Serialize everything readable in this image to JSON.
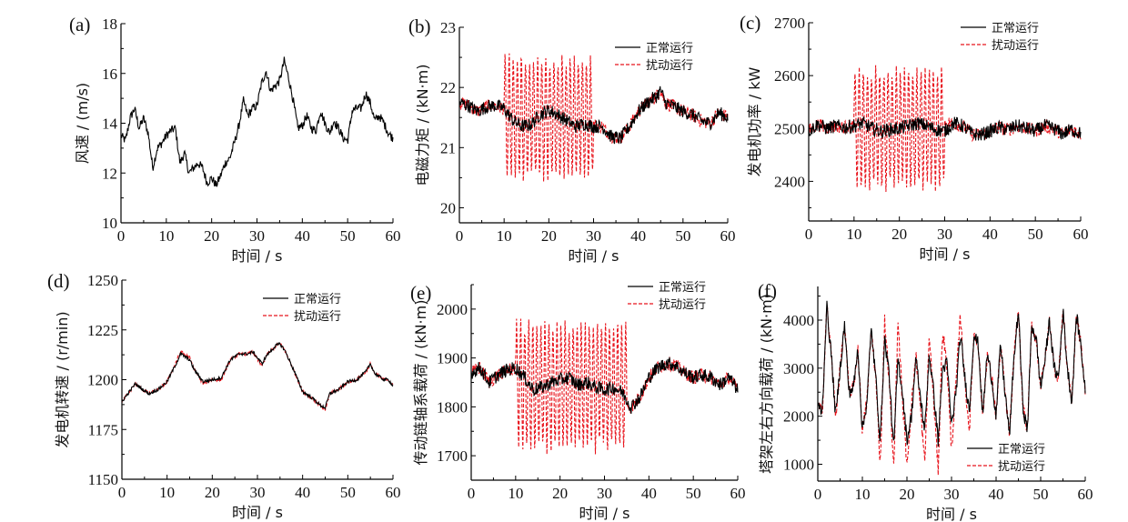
{
  "figure": {
    "legend": {
      "normal": "正常运行",
      "disturbed": "扰动运行"
    },
    "colors": {
      "normal": "#000000",
      "disturbed": "#e8141c"
    }
  },
  "chart_data": [
    {
      "id": "a",
      "type": "line",
      "panel_label": "(a)",
      "title": "",
      "xlabel": "时间 / s",
      "ylabel": "风速 / (m/s)",
      "xlim": [
        0,
        60
      ],
      "ylim": [
        10,
        18
      ],
      "xticks": [
        0,
        10,
        20,
        30,
        40,
        50,
        60
      ],
      "yticks": [
        10,
        12,
        14,
        16,
        18
      ],
      "legend": null,
      "series": [
        {
          "name": "风速",
          "style": "solid",
          "color": "#000000",
          "x": [
            0,
            1,
            2,
            3,
            4,
            5,
            6,
            7,
            8,
            9,
            10,
            11,
            12,
            13,
            14,
            15,
            16,
            17,
            18,
            19,
            20,
            21,
            22,
            23,
            24,
            25,
            26,
            27,
            28,
            29,
            30,
            31,
            32,
            33,
            34,
            35,
            36,
            37,
            38,
            39,
            40,
            41,
            42,
            43,
            44,
            45,
            46,
            47,
            48,
            49,
            50,
            51,
            52,
            53,
            54,
            55,
            56,
            57,
            58,
            59,
            60
          ],
          "y": [
            13.5,
            13.3,
            14.2,
            14.6,
            13.8,
            14.2,
            13.6,
            12.2,
            13.0,
            13.2,
            13.5,
            13.7,
            13.8,
            12.4,
            12.8,
            12.0,
            12.2,
            12.4,
            12.2,
            11.6,
            11.8,
            11.5,
            11.9,
            12.4,
            12.6,
            13.2,
            13.9,
            14.9,
            14.3,
            14.6,
            14.7,
            15.6,
            16.1,
            15.3,
            15.5,
            15.7,
            16.5,
            15.8,
            14.9,
            13.8,
            13.9,
            14.3,
            13.8,
            13.7,
            14.5,
            14.0,
            13.6,
            14.1,
            13.8,
            13.4,
            13.3,
            14.5,
            14.6,
            14.6,
            15.2,
            14.8,
            14.1,
            14.3,
            14.0,
            13.6,
            13.4
          ]
        }
      ]
    },
    {
      "id": "b",
      "type": "line",
      "panel_label": "(b)",
      "title": "",
      "xlabel": "时间 / s",
      "ylabel": "电磁力矩 / (kN·m)",
      "xlim": [
        0,
        60
      ],
      "ylim": [
        19.75,
        23
      ],
      "xticks": [
        0,
        10,
        20,
        30,
        40,
        50,
        60
      ],
      "yticks": [
        20,
        21,
        22,
        23
      ],
      "legend": "top-right",
      "disturbance_window_s": [
        10,
        30
      ],
      "disturbance_envelope": {
        "upper": 22.5,
        "lower": 20.5,
        "peak_max": 22.75,
        "peak_min": 20.2
      },
      "series": [
        {
          "name": "正常运行",
          "style": "solid",
          "color": "#000000",
          "x": [
            0,
            2,
            4,
            6,
            8,
            10,
            12,
            14,
            16,
            18,
            20,
            22,
            24,
            26,
            28,
            30,
            32,
            34,
            36,
            38,
            40,
            42,
            44,
            45,
            46,
            48,
            50,
            52,
            54,
            56,
            58,
            60
          ],
          "y": [
            21.75,
            21.7,
            21.6,
            21.68,
            21.7,
            21.65,
            21.45,
            21.35,
            21.38,
            21.55,
            21.62,
            21.55,
            21.45,
            21.35,
            21.4,
            21.35,
            21.35,
            21.18,
            21.15,
            21.35,
            21.6,
            21.75,
            21.85,
            21.95,
            21.75,
            21.68,
            21.6,
            21.55,
            21.45,
            21.4,
            21.58,
            21.5
          ]
        },
        {
          "name": "扰动运行",
          "style": "dashed",
          "color": "#e8141c",
          "x": [
            0,
            2,
            4,
            6,
            8,
            10,
            32,
            34,
            36,
            38,
            40,
            42,
            44,
            45,
            46,
            48,
            50,
            52,
            54,
            56,
            58,
            60
          ],
          "y": [
            21.75,
            21.7,
            21.6,
            21.68,
            21.7,
            21.65,
            21.35,
            21.18,
            21.15,
            21.35,
            21.6,
            21.75,
            21.85,
            21.95,
            21.75,
            21.68,
            21.6,
            21.55,
            21.45,
            21.4,
            21.58,
            21.5
          ]
        }
      ]
    },
    {
      "id": "c",
      "type": "line",
      "panel_label": "(c)",
      "title": "",
      "xlabel": "时间 / s",
      "ylabel": "发电机功率 / kW",
      "xlim": [
        0,
        60
      ],
      "ylim": [
        2325,
        2700
      ],
      "xticks": [
        0,
        10,
        20,
        30,
        40,
        50,
        60
      ],
      "yticks": [
        2400,
        2500,
        2600,
        2700
      ],
      "legend": "top-right",
      "disturbance_window_s": [
        10,
        30
      ],
      "disturbance_envelope": {
        "upper": 2610,
        "lower": 2390,
        "peak_max": 2645,
        "peak_min": 2365
      },
      "series": [
        {
          "name": "正常运行",
          "style": "solid",
          "color": "#000000",
          "x": [
            0,
            2,
            4,
            6,
            8,
            10,
            12,
            14,
            16,
            18,
            20,
            22,
            24,
            26,
            28,
            30,
            32,
            34,
            36,
            38,
            40,
            42,
            44,
            46,
            48,
            50,
            52,
            54,
            56,
            58,
            60
          ],
          "y": [
            2495,
            2508,
            2500,
            2505,
            2502,
            2505,
            2510,
            2500,
            2495,
            2498,
            2500,
            2505,
            2510,
            2505,
            2498,
            2495,
            2510,
            2505,
            2490,
            2488,
            2495,
            2502,
            2498,
            2505,
            2500,
            2495,
            2505,
            2500,
            2490,
            2498,
            2490
          ]
        },
        {
          "name": "扰动运行",
          "style": "dashed",
          "color": "#e8141c",
          "x": [
            0,
            2,
            4,
            6,
            8,
            10,
            32,
            34,
            36,
            38,
            40,
            42,
            44,
            46,
            48,
            50,
            52,
            54,
            56,
            58,
            60
          ],
          "y": [
            2495,
            2508,
            2500,
            2505,
            2502,
            2505,
            2510,
            2505,
            2490,
            2488,
            2495,
            2502,
            2498,
            2505,
            2500,
            2495,
            2505,
            2500,
            2490,
            2498,
            2490
          ]
        }
      ]
    },
    {
      "id": "d",
      "type": "line",
      "panel_label": "(d)",
      "title": "",
      "xlabel": "时间 / s",
      "ylabel": "发电机转速 / (r/min)",
      "xlim": [
        0,
        60
      ],
      "ylim": [
        1150,
        1250
      ],
      "xticks": [
        0,
        10,
        20,
        30,
        40,
        50,
        60
      ],
      "yticks": [
        1150,
        1175,
        1200,
        1225,
        1250
      ],
      "legend": "top-right",
      "series": [
        {
          "name": "正常运行",
          "style": "solid",
          "color": "#000000",
          "x": [
            0,
            2,
            3,
            4,
            6,
            8,
            10,
            12,
            13,
            15,
            16,
            18,
            20,
            22,
            24,
            26,
            28,
            29,
            30,
            31,
            32,
            34,
            35,
            36,
            38,
            40,
            42,
            44,
            45,
            46,
            48,
            50,
            52,
            54,
            55,
            56,
            58,
            59,
            60
          ],
          "y": [
            1189,
            1195,
            1198,
            1196,
            1193,
            1195,
            1199,
            1208,
            1213,
            1210,
            1205,
            1199,
            1200,
            1201,
            1210,
            1213,
            1213,
            1214,
            1211,
            1208,
            1212,
            1217,
            1218,
            1215,
            1205,
            1194,
            1191,
            1187,
            1186,
            1193,
            1195,
            1199,
            1200,
            1204,
            1208,
            1203,
            1200,
            1200,
            1197
          ]
        },
        {
          "name": "扰动运行",
          "style": "dashed",
          "color": "#e8141c",
          "x": [
            0,
            2,
            3,
            4,
            6,
            8,
            10,
            12,
            13,
            15,
            16,
            18,
            20,
            22,
            24,
            26,
            28,
            29,
            30,
            31,
            32,
            34,
            35,
            36,
            38,
            40,
            42,
            44,
            45,
            46,
            48,
            50,
            52,
            54,
            55,
            56,
            58,
            59,
            60
          ],
          "y": [
            1189,
            1195,
            1198,
            1196,
            1193,
            1195,
            1199,
            1209,
            1214,
            1211,
            1205,
            1198,
            1200,
            1200,
            1210,
            1213,
            1213,
            1214,
            1210,
            1207,
            1212,
            1217,
            1218,
            1215,
            1205,
            1194,
            1191,
            1187,
            1185,
            1193,
            1195,
            1199,
            1200,
            1204,
            1208,
            1203,
            1200,
            1200,
            1197
          ]
        }
      ]
    },
    {
      "id": "e",
      "type": "line",
      "panel_label": "(e)",
      "title": "",
      "xlabel": "时间 / s",
      "ylabel": "传动链轴系载荷 / (kN·m)",
      "xlim": [
        0,
        60
      ],
      "ylim": [
        1650,
        2050
      ],
      "xticks": [
        0,
        10,
        20,
        30,
        40,
        50,
        60
      ],
      "yticks": [
        1700,
        1800,
        1900,
        2000
      ],
      "legend": "top-right",
      "disturbance_window_s": [
        10,
        35
      ],
      "disturbance_envelope": {
        "upper": 1970,
        "lower": 1715,
        "peak_max": 2015,
        "peak_min": 1700
      },
      "series": [
        {
          "name": "正常运行",
          "style": "solid",
          "color": "#000000",
          "x": [
            0,
            2,
            4,
            6,
            8,
            10,
            12,
            14,
            16,
            18,
            20,
            22,
            24,
            26,
            28,
            30,
            32,
            34,
            36,
            38,
            40,
            42,
            44,
            46,
            48,
            50,
            52,
            54,
            56,
            58,
            60
          ],
          "y": [
            1870,
            1880,
            1850,
            1865,
            1875,
            1880,
            1860,
            1835,
            1840,
            1850,
            1855,
            1860,
            1845,
            1850,
            1840,
            1835,
            1840,
            1830,
            1800,
            1820,
            1860,
            1880,
            1890,
            1885,
            1870,
            1860,
            1865,
            1860,
            1845,
            1860,
            1835
          ]
        },
        {
          "name": "扰动运行",
          "style": "dashed",
          "color": "#e8141c",
          "x": [
            0,
            2,
            4,
            6,
            8,
            10,
            36,
            38,
            40,
            42,
            44,
            46,
            48,
            50,
            52,
            54,
            56,
            58,
            60
          ],
          "y": [
            1870,
            1880,
            1850,
            1865,
            1875,
            1880,
            1800,
            1820,
            1860,
            1880,
            1890,
            1885,
            1870,
            1860,
            1865,
            1860,
            1845,
            1860,
            1835
          ]
        }
      ]
    },
    {
      "id": "f",
      "type": "line",
      "panel_label": "(f)",
      "title": "",
      "xlabel": "时间 / s",
      "ylabel": "塔架左右方向载荷 / (kN·m)",
      "xlim": [
        0,
        60
      ],
      "ylim": [
        650,
        4700
      ],
      "xticks": [
        0,
        10,
        20,
        30,
        40,
        50,
        60
      ],
      "yticks": [
        1000,
        2000,
        3000,
        4000
      ],
      "legend": "bottom-right",
      "series": [
        {
          "name": "正常运行",
          "style": "solid",
          "color": "#000000",
          "x": [
            0,
            1,
            2,
            3,
            4,
            5,
            6,
            7,
            8,
            9,
            10,
            11,
            12,
            13,
            14,
            15,
            16,
            17,
            18,
            19,
            20,
            21,
            22,
            23,
            24,
            25,
            26,
            27,
            28,
            29,
            30,
            31,
            32,
            33,
            34,
            35,
            36,
            37,
            38,
            39,
            40,
            41,
            42,
            43,
            44,
            45,
            46,
            47,
            48,
            49,
            50,
            51,
            52,
            53,
            54,
            55,
            56,
            57,
            58,
            59,
            60
          ],
          "y": [
            2200,
            2100,
            4300,
            3300,
            2000,
            3000,
            3900,
            2500,
            2600,
            3400,
            1700,
            2300,
            3800,
            2800,
            1500,
            3600,
            2900,
            1300,
            3200,
            2500,
            1500,
            2000,
            3200,
            2400,
            1700,
            3300,
            2500,
            1500,
            3000,
            3100,
            1800,
            2500,
            3700,
            2800,
            2100,
            3700,
            3500,
            2000,
            3300,
            2800,
            2000,
            3500,
            2500,
            1600,
            3200,
            4200,
            2200,
            1700,
            3900,
            3600,
            2600,
            3200,
            4000,
            3000,
            2800,
            4200,
            3000,
            2300,
            4100,
            3500,
            2500
          ]
        },
        {
          "name": "扰动运行",
          "style": "dashed",
          "color": "#e8141c",
          "x": [
            0,
            1,
            2,
            3,
            4,
            5,
            6,
            7,
            8,
            9,
            10,
            11,
            12,
            13,
            14,
            15,
            16,
            17,
            18,
            19,
            20,
            21,
            22,
            23,
            24,
            25,
            26,
            27,
            28,
            29,
            30,
            31,
            32,
            33,
            34,
            35,
            36,
            37,
            38,
            39,
            40,
            41,
            42,
            43,
            44,
            45,
            46,
            47,
            48,
            49,
            50,
            51,
            52,
            53,
            54,
            55,
            56,
            57,
            58,
            59,
            60
          ],
          "y": [
            2200,
            2100,
            4300,
            3300,
            2000,
            3000,
            3900,
            2500,
            2600,
            3400,
            1700,
            2300,
            3800,
            2800,
            1000,
            4000,
            2800,
            900,
            4000,
            2300,
            1000,
            2200,
            3300,
            2200,
            1000,
            3700,
            2300,
            900,
            3800,
            3000,
            1300,
            2700,
            4100,
            2700,
            1700,
            3700,
            3500,
            2000,
            3300,
            2800,
            2000,
            3500,
            2500,
            1600,
            3200,
            4200,
            2200,
            1700,
            3900,
            3600,
            2600,
            3200,
            4000,
            3000,
            2800,
            4200,
            3000,
            2300,
            4100,
            3500,
            2500
          ]
        }
      ]
    }
  ]
}
